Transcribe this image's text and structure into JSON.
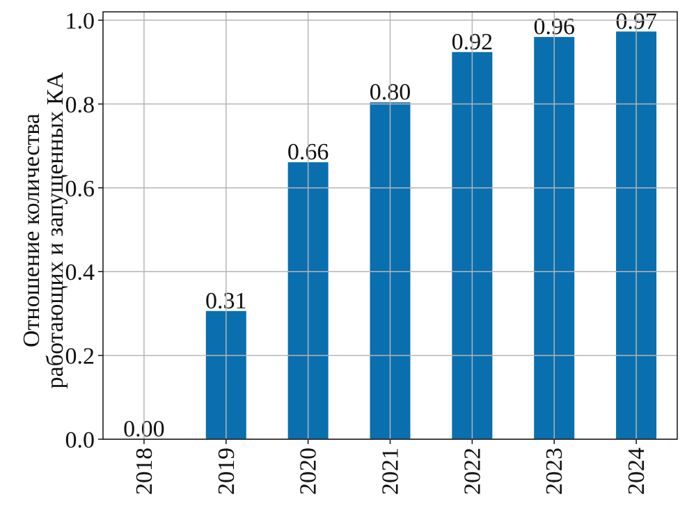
{
  "chart_data": {
    "type": "bar",
    "ylabel": [
      "Отношение количества",
      "работающих и запущенных КА"
    ],
    "categories": [
      "2018",
      "2019",
      "2020",
      "2021",
      "2022",
      "2023",
      "2024"
    ],
    "values": [
      0,
      0.306,
      0.661,
      0.804,
      0.924,
      0.96,
      0.973
    ],
    "value_labels": [
      "0.00",
      "0.31",
      "0.66",
      "0.80",
      "0.92",
      "0.96",
      "0.97"
    ],
    "color": "#0a6fae",
    "ylim": [
      0,
      1.02
    ],
    "yticks": [
      {
        "value": 0,
        "label": "0.0"
      },
      {
        "value": 0.2,
        "label": "0.2"
      },
      {
        "value": 0.4,
        "label": "0.4"
      },
      {
        "value": 0.6,
        "label": "0.6"
      },
      {
        "value": 0.8,
        "label": "0.8"
      },
      {
        "value": 1,
        "label": "1.0"
      }
    ],
    "grid": true
  }
}
